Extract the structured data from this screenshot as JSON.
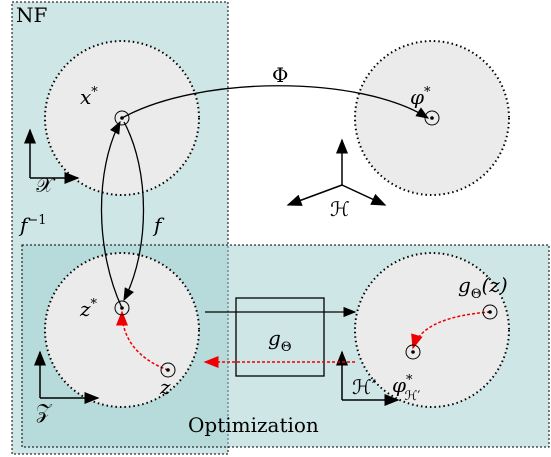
{
  "nf_box": {
    "label": "NF"
  },
  "optimization_box": {
    "label": "Optimization"
  },
  "labels": [
    {
      "base": "x",
      "sup": "*"
    },
    {
      "base": "φ",
      "sup": "*"
    },
    {
      "base": "Φ"
    },
    {
      "base": "ℋ"
    },
    {
      "base": "𝒳"
    },
    {
      "base": "f",
      "sup": "−1"
    },
    {
      "base": "f"
    },
    {
      "base": "z",
      "sup": "*"
    },
    {
      "base": "z"
    },
    {
      "base": "g",
      "sub": "Θ"
    },
    {
      "base": "g",
      "sub": "Θ",
      "tail": "(z)"
    },
    {
      "base": "φ",
      "sup": "*",
      "sub": "ℋ′"
    },
    {
      "base": "𝒵"
    },
    {
      "base": "ℋ′"
    }
  ]
}
